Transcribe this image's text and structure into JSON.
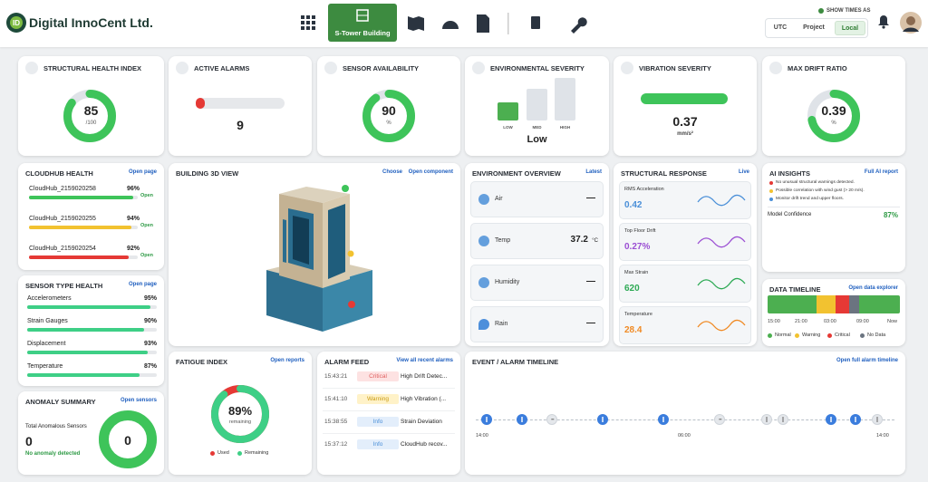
{
  "header": {
    "brand": "Digital InnoCent Ltd.",
    "active_site": "S-Tower Building",
    "show_times_as": "SHOW TIMES AS",
    "time_modes": [
      "UTC",
      "Project",
      "Local"
    ]
  },
  "kpis": {
    "structural_health": {
      "title": "STRUCTURAL HEALTH INDEX",
      "value": 85,
      "max_label": "/100"
    },
    "active_alarms": {
      "title": "ACTIVE ALARMS",
      "value": 9
    },
    "sensor_availability": {
      "title": "SENSOR AVAILABILITY",
      "value": 90,
      "unit": "%"
    },
    "environmental_severity": {
      "title": "ENVIRONMENTAL SEVERITY",
      "levels": [
        "LOW",
        "MED",
        "HIGH"
      ],
      "value": "Low"
    },
    "vibration_severity": {
      "title": "VIBRATION SEVERITY",
      "value": 0.37,
      "unit": "mm/s²"
    },
    "max_drift": {
      "title": "MAX DRIFT RATIO",
      "value": 0.39,
      "unit": "%"
    }
  },
  "cloudhub": {
    "title": "CLOUDHUB HEALTH",
    "link": "Open page",
    "items": [
      {
        "name": "CloudHub_2159020258",
        "value": 96,
        "value_label": "96%",
        "status": "Open"
      },
      {
        "name": "CloudHub_2159020255",
        "value": 94,
        "value_label": "94%",
        "status": "Open"
      },
      {
        "name": "CloudHub_2159020254",
        "value": 92,
        "value_label": "92%",
        "status": "Open"
      }
    ]
  },
  "sensor_health": {
    "title": "SENSOR TYPE HEALTH",
    "link": "Open page",
    "items": [
      {
        "name": "Accelerometers",
        "value": 95,
        "value_label": "95%"
      },
      {
        "name": "Strain Gauges",
        "value": 90,
        "value_label": "90%"
      },
      {
        "name": "Displacement",
        "value": 93,
        "value_label": "93%"
      },
      {
        "name": "Temperature",
        "value": 87,
        "value_label": "87%"
      }
    ]
  },
  "anomaly": {
    "title": "ANOMALY SUMMARY",
    "link": "Open sensors",
    "label": "Total Anomalous Sensors",
    "value": 0,
    "status": "No anomaly detected"
  },
  "building": {
    "title": "BUILDING 3D VIEW",
    "links": [
      "Choose",
      "Open component"
    ]
  },
  "environment": {
    "title": "ENVIRONMENT OVERVIEW",
    "link": "Latest",
    "rows": [
      {
        "name": "Air",
        "value": "—"
      },
      {
        "name": "Temp",
        "value": "37.2",
        "unit": "°C"
      },
      {
        "name": "Humidity",
        "value": "—"
      },
      {
        "name": "Rain",
        "value": "—"
      }
    ]
  },
  "structural": {
    "title": "STRUCTURAL RESPONSE",
    "link": "Live",
    "rows": [
      {
        "name": "RMS Acceleration",
        "value": "0.42"
      },
      {
        "name": "Top Floor Drift",
        "value": "0.27%"
      },
      {
        "name": "Max Strain",
        "value": "620"
      },
      {
        "name": "Temperature",
        "value": "28.4"
      }
    ]
  },
  "ai": {
    "title": "AI INSIGHTS",
    "link": "Full AI report",
    "insights": [
      "No unusual structural warnings detected.",
      "Possible correlation with wind gust (> 20 m/s).",
      "Monitor drift trend and upper floors."
    ],
    "confidence_label": "Model Confidence",
    "confidence": "87%"
  },
  "data_timeline": {
    "title": "DATA TIMELINE",
    "link": "Open data explorer",
    "ticks": [
      "15:00",
      "21:00",
      "03:00",
      "09:00",
      "Now"
    ],
    "legend": [
      "Normal",
      "Warning",
      "Critical",
      "No Data"
    ]
  },
  "fatigue": {
    "title": "FATIGUE INDEX",
    "link": "Open reports",
    "value": 89,
    "value_label": "89%",
    "sub": "remaining",
    "legend": [
      "Used",
      "Remaining"
    ]
  },
  "alarm_feed": {
    "title": "ALARM FEED",
    "link": "View all recent alarms",
    "items": [
      {
        "time": "15:43:21",
        "level": "Critical",
        "text": "High Drift Detec..."
      },
      {
        "time": "15:41:10",
        "level": "Warning",
        "text": "High Vibration (..."
      },
      {
        "time": "15:38:55",
        "level": "Info",
        "text": "Strain Deviation"
      },
      {
        "time": "15:37:12",
        "level": "Info",
        "text": "CloudHub recov..."
      }
    ]
  },
  "events": {
    "title": "EVENT / ALARM TIMELINE",
    "link": "Open full alarm timeline",
    "ticks": [
      "14:00",
      "06:00",
      "14:00"
    ]
  }
}
